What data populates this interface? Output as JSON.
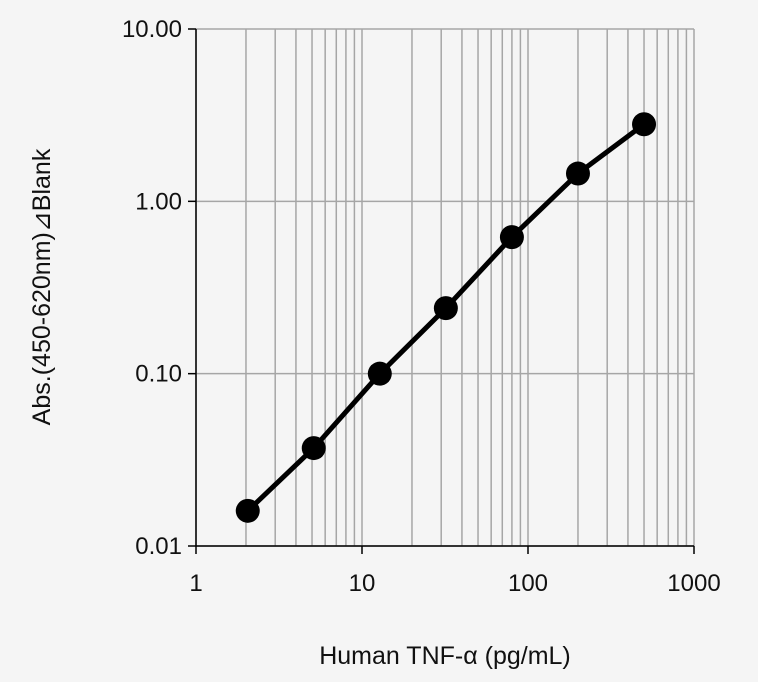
{
  "chart_data": {
    "type": "line",
    "title": "",
    "xlabel": "Human TNF-α (pg/mL)",
    "ylabel": "Abs.(450-620nm)⊿Blank",
    "x_scale": "log",
    "y_scale": "log",
    "xlim": [
      1,
      1000
    ],
    "ylim": [
      0.01,
      10
    ],
    "x_tick_labels": [
      "1",
      "10",
      "100",
      "1000"
    ],
    "y_tick_labels": [
      "0.01",
      "0.10",
      "1.00",
      "10.00"
    ],
    "grid": true,
    "legend": "none",
    "series": [
      {
        "x": [
          2.05,
          5.12,
          12.8,
          32,
          80,
          200,
          500
        ],
        "y": [
          0.016,
          0.037,
          0.1,
          0.24,
          0.62,
          1.45,
          2.8
        ]
      }
    ],
    "colors": {
      "line": "#000000",
      "marker": "#000000",
      "grid": "#a6a6a6",
      "axis": "#000000",
      "background": "#f5f5f5"
    }
  }
}
